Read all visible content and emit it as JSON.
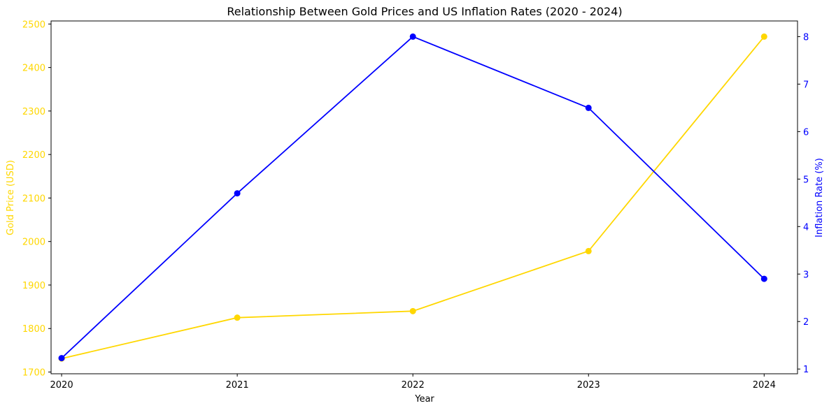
{
  "chart_data": {
    "type": "line",
    "title": "Relationship Between Gold Prices and US Inflation Rates (2020 - 2024)",
    "xlabel": "Year",
    "ylabel_left": "Gold Price (USD)",
    "ylabel_right": "Inflation Rate (%)",
    "categories": [
      "2020",
      "2021",
      "2022",
      "2023",
      "2024"
    ],
    "x": [
      2020,
      2021,
      2022,
      2023,
      2024
    ],
    "xlim": [
      2019.94,
      2024.19
    ],
    "ylim_left": [
      1696,
      2507
    ],
    "ylim_right": [
      0.9,
      8.33
    ],
    "yticks_left": [
      1700,
      1800,
      1900,
      2000,
      2100,
      2200,
      2300,
      2400,
      2500
    ],
    "yticks_right": [
      1,
      2,
      3,
      4,
      5,
      6,
      7,
      8
    ],
    "grid": false,
    "series": [
      {
        "axis": "left",
        "color": "#FFD700",
        "values": [
          1731,
          1825,
          1840,
          1978,
          2471
        ]
      },
      {
        "axis": "right",
        "color": "#0000FF",
        "values": [
          1.23,
          4.7,
          8.0,
          6.5,
          2.9
        ]
      }
    ],
    "colors": {
      "left_axis": "#FFD700",
      "right_axis": "#0000FF",
      "frame": "#000000"
    }
  }
}
